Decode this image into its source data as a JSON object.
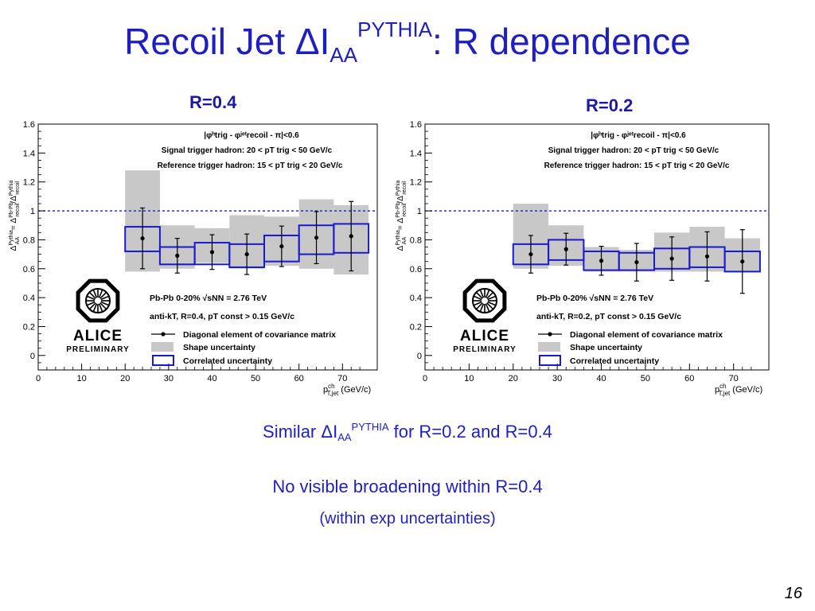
{
  "slide": {
    "title_main": "Recoil Jet ΔI",
    "title_sub": "AA",
    "title_sup": "PYTHIA",
    "title_rest": ": R dependence",
    "panel_left_label": "R=0.4",
    "panel_right_label": "R=0.2",
    "line1_pre": "Similar ΔI",
    "line1_sub": "AA",
    "line1_sup": "PYTHIA",
    "line1_post": " for R=0.2 and R=0.4",
    "line2": "No visible broadening within R=0.4",
    "line3": "(within exp uncertainties)",
    "page_number": "16"
  },
  "colors": {
    "title": "#1f1fbf",
    "correlated_box": "#1a1acc",
    "shape_band": "#c8c8c8",
    "reference_line": "#1a1acc"
  },
  "chart_data": [
    {
      "type": "scatter",
      "label": "R=0.4",
      "xlim": [
        0,
        78
      ],
      "ylim": [
        -0.1,
        1.6
      ],
      "x_ticks": [
        0,
        10,
        20,
        30,
        40,
        50,
        60,
        70
      ],
      "y_ticks": [
        0,
        0.2,
        0.4,
        0.6,
        0.8,
        1,
        1.2,
        1.4,
        1.6
      ],
      "xlabel": "p_T,jet^ch (GeV/c)",
      "ylabel": "Δ_AA^Pythia = Δ_recoil^Pb-Pb / Δ_recoil^Pythia",
      "reference_line": 1,
      "annotations": [
        "|φ^h_trig - φ^jet_recoil - π|<0.6",
        "Signal trigger hadron: 20 < p_T^trig < 50 GeV/c",
        "Reference trigger hadron: 15 < p_T^trig < 20 GeV/c",
        "Pb-Pb 0-20% √s_NN = 2.76 TeV",
        "anti-k_T, R=0.4, p_T^const > 0.15 GeV/c"
      ],
      "legend": [
        "Diagonal element of covariance matrix",
        "Shape uncertainty",
        "Correlated uncertainty"
      ],
      "logo": [
        "ALICE",
        "PRELIMINARY"
      ],
      "series": [
        {
          "name": "Diagonal element of covariance matrix",
          "x": [
            24,
            32,
            40,
            48,
            56,
            64,
            72
          ],
          "y": [
            0.81,
            0.69,
            0.715,
            0.7,
            0.755,
            0.815,
            0.825
          ],
          "err": [
            0.21,
            0.12,
            0.12,
            0.14,
            0.14,
            0.18,
            0.24
          ]
        }
      ],
      "bins": [
        [
          20,
          28
        ],
        [
          28,
          36
        ],
        [
          36,
          44
        ],
        [
          44,
          52
        ],
        [
          52,
          60
        ],
        [
          60,
          68
        ],
        [
          68,
          76
        ]
      ],
      "shape_uncertainty": [
        [
          0.58,
          1.28
        ],
        [
          0.6,
          0.9
        ],
        [
          0.64,
          0.88
        ],
        [
          0.6,
          0.97
        ],
        [
          0.62,
          0.96
        ],
        [
          0.6,
          1.08
        ],
        [
          0.56,
          1.04
        ]
      ],
      "correlated_uncertainty": [
        [
          0.72,
          0.89
        ],
        [
          0.63,
          0.75
        ],
        [
          0.63,
          0.78
        ],
        [
          0.61,
          0.77
        ],
        [
          0.65,
          0.83
        ],
        [
          0.7,
          0.9
        ],
        [
          0.71,
          0.91
        ]
      ]
    },
    {
      "type": "scatter",
      "label": "R=0.2",
      "xlim": [
        0,
        78
      ],
      "ylim": [
        -0.1,
        1.6
      ],
      "x_ticks": [
        0,
        10,
        20,
        30,
        40,
        50,
        60,
        70
      ],
      "y_ticks": [
        0,
        0.2,
        0.4,
        0.6,
        0.8,
        1,
        1.2,
        1.4,
        1.6
      ],
      "xlabel": "p_T,jet^ch (GeV/c)",
      "ylabel": "Δ_AA^Pythia = Δ_recoil^Pb-Pb / Δ_recoil^Pythia",
      "reference_line": 1,
      "annotations": [
        "|φ^h_trig - φ^jet_recoil - π|<0.6",
        "Signal trigger hadron: 20 < p_T^trig < 50 GeV/c",
        "Reference trigger hadron: 15 < p_T^trig < 20 GeV/c",
        "Pb-Pb 0-20% √s_NN = 2.76 TeV",
        "anti-k_T, R=0.2, p_T^const > 0.15 GeV/c"
      ],
      "legend": [
        "Diagonal element of covariance matrix",
        "Shape uncertainty",
        "Correlated uncertainty"
      ],
      "logo": [
        "ALICE",
        "PRELIMINARY"
      ],
      "series": [
        {
          "name": "Diagonal element of covariance matrix",
          "x": [
            24,
            32,
            40,
            48,
            56,
            64,
            72
          ],
          "y": [
            0.7,
            0.735,
            0.655,
            0.645,
            0.67,
            0.685,
            0.65
          ],
          "err": [
            0.13,
            0.11,
            0.1,
            0.13,
            0.15,
            0.17,
            0.22
          ]
        }
      ],
      "bins": [
        [
          20,
          28
        ],
        [
          28,
          36
        ],
        [
          36,
          44
        ],
        [
          44,
          52
        ],
        [
          52,
          60
        ],
        [
          60,
          68
        ],
        [
          68,
          76
        ]
      ],
      "shape_uncertainty": [
        [
          0.6,
          1.05
        ],
        [
          0.62,
          0.9
        ],
        [
          0.58,
          0.75
        ],
        [
          0.58,
          0.73
        ],
        [
          0.58,
          0.85
        ],
        [
          0.58,
          0.89
        ],
        [
          0.58,
          0.81
        ]
      ],
      "correlated_uncertainty": [
        [
          0.63,
          0.77
        ],
        [
          0.66,
          0.8
        ],
        [
          0.59,
          0.72
        ],
        [
          0.59,
          0.71
        ],
        [
          0.6,
          0.74
        ],
        [
          0.61,
          0.75
        ],
        [
          0.58,
          0.72
        ]
      ]
    }
  ]
}
